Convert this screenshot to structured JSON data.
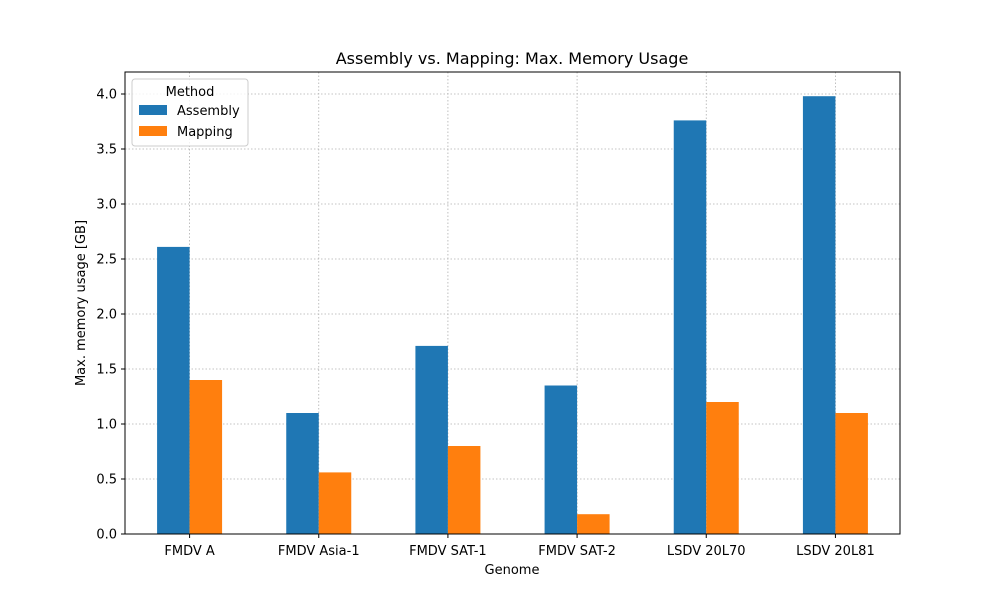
{
  "chart_data": {
    "type": "bar",
    "title": "Assembly vs. Mapping: Max. Memory Usage",
    "xlabel": "Genome",
    "ylabel": "Max. memory usage [GB]",
    "categories": [
      "FMDV A",
      "FMDV Asia-1",
      "FMDV SAT-1",
      "FMDV SAT-2",
      "LSDV 20L70",
      "LSDV 20L81"
    ],
    "series": [
      {
        "name": "Assembly",
        "color": "#1f77b4",
        "values": [
          2.61,
          1.1,
          1.71,
          1.35,
          3.76,
          3.98
        ]
      },
      {
        "name": "Mapping",
        "color": "#ff7f0e",
        "values": [
          1.4,
          0.56,
          0.8,
          0.18,
          1.2,
          1.1
        ]
      }
    ],
    "ylim": [
      0,
      4.2
    ],
    "yticks": [
      "0.0",
      "0.5",
      "1.0",
      "1.5",
      "2.0",
      "2.5",
      "3.0",
      "3.5",
      "4.0"
    ],
    "grid": true,
    "legend": {
      "title": "Method",
      "placement": "top-left"
    }
  }
}
